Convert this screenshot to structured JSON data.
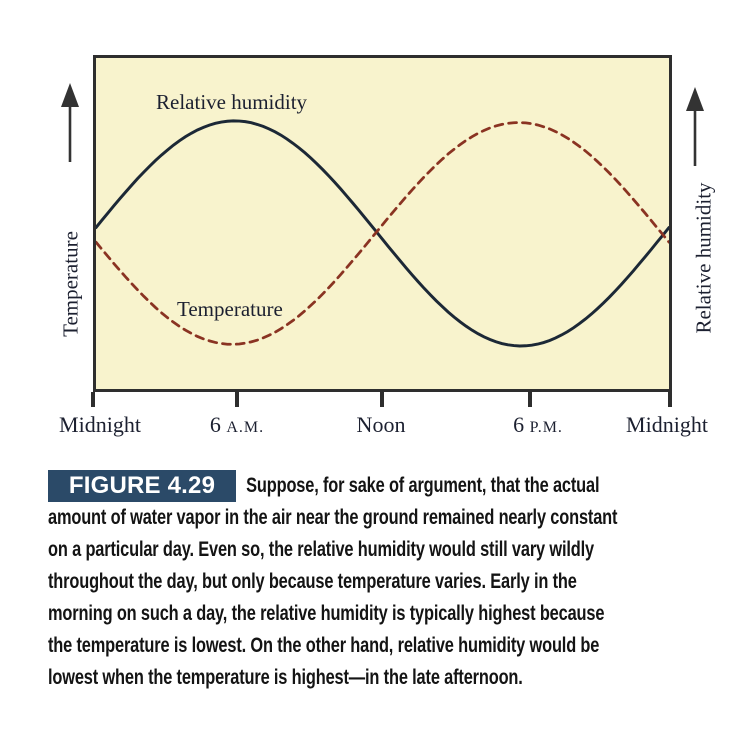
{
  "figure": {
    "chart": {
      "left_axis_label": "Temperature",
      "right_axis_label": "Relative humidity",
      "humidity_curve_label": "Relative humidity",
      "temperature_curve_label": "Temperature",
      "x_ticks": [
        {
          "main": "Midnight",
          "small": ""
        },
        {
          "main": "6 ",
          "small": "A.M."
        },
        {
          "main": "Noon",
          "small": ""
        },
        {
          "main": "6 ",
          "small": "P.M."
        },
        {
          "main": "Midnight",
          "small": ""
        }
      ]
    },
    "caption": {
      "badge": "FIGURE 4.29",
      "lines": [
        "Suppose, for sake of argument, that the actual",
        "amount of water vapor in the air near the ground remained nearly constant",
        "on a particular day. Even so, the relative humidity would still vary wildly",
        "throughout the day, but only because temperature varies. Early in the",
        "morning on such a day, the relative humidity is typically highest because",
        "the temperature is lowest. On the other hand, relative humidity would be",
        "lowest when the temperature is highest—in the late afternoon."
      ]
    },
    "colors": {
      "plot_background": "#f8f3cd",
      "axis": "#2e2e2e",
      "badge_background": "#2b4a68",
      "badge_text": "#ffffff"
    }
  },
  "chart_data": {
    "type": "line",
    "title": "",
    "xlabel": "",
    "left_ylabel": "Temperature",
    "right_ylabel": "Relative humidity",
    "x_tick_labels": [
      "Midnight",
      "6 A.M.",
      "Noon",
      "6 P.M.",
      "Midnight"
    ],
    "x_hours": [
      0,
      6,
      12,
      18,
      24
    ],
    "y_scale": "qualitative, unitless (0 = plot bottom, 1 = plot top)",
    "grid": false,
    "legend": "labels placed on curves inside plot",
    "plot_hours_range": [
      0,
      24
    ],
    "series": [
      {
        "name": "Relative humidity",
        "style": "solid",
        "color": "#1c2836",
        "values_at_ticks": [
          0.49,
          0.81,
          0.46,
          0.14,
          0.49
        ],
        "sine": {
          "mid": 0.47,
          "amp": 0.34,
          "peak_hour": 5.8,
          "period_hours": 24
        }
      },
      {
        "name": "Temperature",
        "style": "dashed",
        "color": "#8a3322",
        "values_at_ticks": [
          0.45,
          0.14,
          0.5,
          0.8,
          0.46
        ],
        "sine": {
          "mid": 0.47,
          "amp": 0.335,
          "peak_hour": 17.7,
          "period_hours": 24
        }
      }
    ]
  }
}
